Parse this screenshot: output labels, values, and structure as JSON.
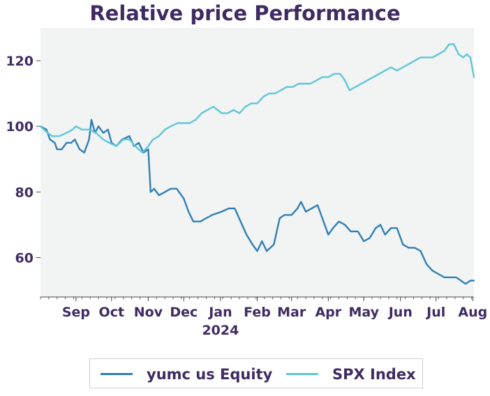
{
  "chart_data": {
    "type": "line",
    "title": "Relative price Performance",
    "xlabel": "",
    "ylabel": "",
    "ylim": [
      48,
      130
    ],
    "yticks": [
      60,
      80,
      100,
      120
    ],
    "grid": false,
    "legend_position": "bottom",
    "x_ticks": [
      {
        "label": "Sep",
        "x": "2023-09-01"
      },
      {
        "label": "Oct",
        "x": "2023-10-01"
      },
      {
        "label": "Nov",
        "x": "2023-11-01"
      },
      {
        "label": "Dec",
        "x": "2023-12-01"
      },
      {
        "label": "Jan",
        "sublabel": "2024",
        "x": "2024-01-01"
      },
      {
        "label": "Feb",
        "x": "2024-02-01"
      },
      {
        "label": "Mar",
        "x": "2024-03-01"
      },
      {
        "label": "Apr",
        "x": "2024-04-01"
      },
      {
        "label": "May",
        "x": "2024-05-01"
      },
      {
        "label": "Jun",
        "x": "2024-06-01"
      },
      {
        "label": "Jul",
        "x": "2024-07-01"
      },
      {
        "label": "Aug",
        "x": "2024-08-01"
      }
    ],
    "series": [
      {
        "name": "yumc us Equity",
        "color": "#2f7fb5",
        "points": [
          [
            "2023-08-02",
            100
          ],
          [
            "2023-08-07",
            99
          ],
          [
            "2023-08-10",
            96
          ],
          [
            "2023-08-14",
            95
          ],
          [
            "2023-08-16",
            93
          ],
          [
            "2023-08-20",
            93
          ],
          [
            "2023-08-24",
            95
          ],
          [
            "2023-08-28",
            95
          ],
          [
            "2023-08-31",
            96
          ],
          [
            "2023-09-04",
            93
          ],
          [
            "2023-09-08",
            92
          ],
          [
            "2023-09-12",
            96
          ],
          [
            "2023-09-14",
            102
          ],
          [
            "2023-09-17",
            98
          ],
          [
            "2023-09-20",
            100
          ],
          [
            "2023-09-24",
            98
          ],
          [
            "2023-09-28",
            99
          ],
          [
            "2023-10-01",
            95
          ],
          [
            "2023-10-05",
            94
          ],
          [
            "2023-10-10",
            96
          ],
          [
            "2023-10-16",
            97
          ],
          [
            "2023-10-20",
            94
          ],
          [
            "2023-10-24",
            95
          ],
          [
            "2023-10-28",
            92
          ],
          [
            "2023-11-01",
            93
          ],
          [
            "2023-11-03",
            80
          ],
          [
            "2023-11-06",
            81
          ],
          [
            "2023-11-10",
            79
          ],
          [
            "2023-11-15",
            80
          ],
          [
            "2023-11-20",
            81
          ],
          [
            "2023-11-25",
            81
          ],
          [
            "2023-12-01",
            78
          ],
          [
            "2023-12-05",
            74
          ],
          [
            "2023-12-09",
            71
          ],
          [
            "2023-12-15",
            71
          ],
          [
            "2023-12-20",
            72
          ],
          [
            "2023-12-25",
            73
          ],
          [
            "2024-01-02",
            74
          ],
          [
            "2024-01-08",
            75
          ],
          [
            "2024-01-13",
            75
          ],
          [
            "2024-01-18",
            71
          ],
          [
            "2024-01-23",
            67
          ],
          [
            "2024-01-28",
            64
          ],
          [
            "2024-02-01",
            62
          ],
          [
            "2024-02-05",
            65
          ],
          [
            "2024-02-09",
            62
          ],
          [
            "2024-02-15",
            64
          ],
          [
            "2024-02-20",
            72
          ],
          [
            "2024-02-24",
            73
          ],
          [
            "2024-03-01",
            73
          ],
          [
            "2024-03-06",
            75
          ],
          [
            "2024-03-09",
            77
          ],
          [
            "2024-03-13",
            74
          ],
          [
            "2024-03-18",
            75
          ],
          [
            "2024-03-23",
            76
          ],
          [
            "2024-03-27",
            72
          ],
          [
            "2024-04-01",
            67
          ],
          [
            "2024-04-05",
            69
          ],
          [
            "2024-04-10",
            71
          ],
          [
            "2024-04-15",
            70
          ],
          [
            "2024-04-20",
            68
          ],
          [
            "2024-04-26",
            68
          ],
          [
            "2024-05-01",
            65
          ],
          [
            "2024-05-06",
            66
          ],
          [
            "2024-05-11",
            69
          ],
          [
            "2024-05-15",
            70
          ],
          [
            "2024-05-19",
            67
          ],
          [
            "2024-05-24",
            69
          ],
          [
            "2024-05-29",
            69
          ],
          [
            "2024-06-03",
            64
          ],
          [
            "2024-06-08",
            63
          ],
          [
            "2024-06-13",
            63
          ],
          [
            "2024-06-18",
            62
          ],
          [
            "2024-06-23",
            58
          ],
          [
            "2024-06-28",
            56
          ],
          [
            "2024-07-03",
            55
          ],
          [
            "2024-07-08",
            54
          ],
          [
            "2024-07-13",
            54
          ],
          [
            "2024-07-18",
            54
          ],
          [
            "2024-07-22",
            53
          ],
          [
            "2024-07-26",
            52
          ],
          [
            "2024-07-30",
            53
          ],
          [
            "2024-08-02",
            53
          ]
        ]
      },
      {
        "name": "SPX Index",
        "color": "#5ec6d8",
        "points": [
          [
            "2023-08-02",
            100
          ],
          [
            "2023-08-08",
            98
          ],
          [
            "2023-08-12",
            97
          ],
          [
            "2023-08-18",
            97
          ],
          [
            "2023-08-24",
            98
          ],
          [
            "2023-08-29",
            99
          ],
          [
            "2023-09-01",
            100
          ],
          [
            "2023-09-06",
            99
          ],
          [
            "2023-09-12",
            99
          ],
          [
            "2023-09-18",
            98
          ],
          [
            "2023-09-24",
            96
          ],
          [
            "2023-09-29",
            95
          ],
          [
            "2023-10-05",
            94
          ],
          [
            "2023-10-11",
            96
          ],
          [
            "2023-10-16",
            96
          ],
          [
            "2023-10-21",
            94
          ],
          [
            "2023-10-27",
            92
          ],
          [
            "2023-11-01",
            94
          ],
          [
            "2023-11-05",
            96
          ],
          [
            "2023-11-10",
            97
          ],
          [
            "2023-11-15",
            99
          ],
          [
            "2023-11-20",
            100
          ],
          [
            "2023-11-26",
            101
          ],
          [
            "2023-12-01",
            101
          ],
          [
            "2023-12-06",
            101
          ],
          [
            "2023-12-11",
            102
          ],
          [
            "2023-12-16",
            104
          ],
          [
            "2023-12-21",
            105
          ],
          [
            "2023-12-26",
            106
          ],
          [
            "2024-01-02",
            104
          ],
          [
            "2024-01-07",
            104
          ],
          [
            "2024-01-12",
            105
          ],
          [
            "2024-01-17",
            104
          ],
          [
            "2024-01-22",
            106
          ],
          [
            "2024-01-27",
            107
          ],
          [
            "2024-02-01",
            107
          ],
          [
            "2024-02-06",
            109
          ],
          [
            "2024-02-11",
            110
          ],
          [
            "2024-02-16",
            110
          ],
          [
            "2024-02-21",
            111
          ],
          [
            "2024-02-26",
            112
          ],
          [
            "2024-03-02",
            112
          ],
          [
            "2024-03-07",
            113
          ],
          [
            "2024-03-12",
            113
          ],
          [
            "2024-03-17",
            113
          ],
          [
            "2024-03-22",
            114
          ],
          [
            "2024-03-27",
            115
          ],
          [
            "2024-04-01",
            115
          ],
          [
            "2024-04-06",
            116
          ],
          [
            "2024-04-11",
            116
          ],
          [
            "2024-04-15",
            114
          ],
          [
            "2024-04-19",
            111
          ],
          [
            "2024-04-24",
            112
          ],
          [
            "2024-04-29",
            113
          ],
          [
            "2024-05-04",
            114
          ],
          [
            "2024-05-09",
            115
          ],
          [
            "2024-05-14",
            116
          ],
          [
            "2024-05-19",
            117
          ],
          [
            "2024-05-24",
            118
          ],
          [
            "2024-05-29",
            117
          ],
          [
            "2024-06-03",
            118
          ],
          [
            "2024-06-08",
            119
          ],
          [
            "2024-06-13",
            120
          ],
          [
            "2024-06-18",
            121
          ],
          [
            "2024-06-23",
            121
          ],
          [
            "2024-06-28",
            121
          ],
          [
            "2024-07-03",
            122
          ],
          [
            "2024-07-08",
            123
          ],
          [
            "2024-07-12",
            125
          ],
          [
            "2024-07-16",
            125
          ],
          [
            "2024-07-20",
            122
          ],
          [
            "2024-07-24",
            121
          ],
          [
            "2024-07-27",
            122
          ],
          [
            "2024-07-30",
            121
          ],
          [
            "2024-08-02",
            115
          ]
        ]
      }
    ]
  }
}
